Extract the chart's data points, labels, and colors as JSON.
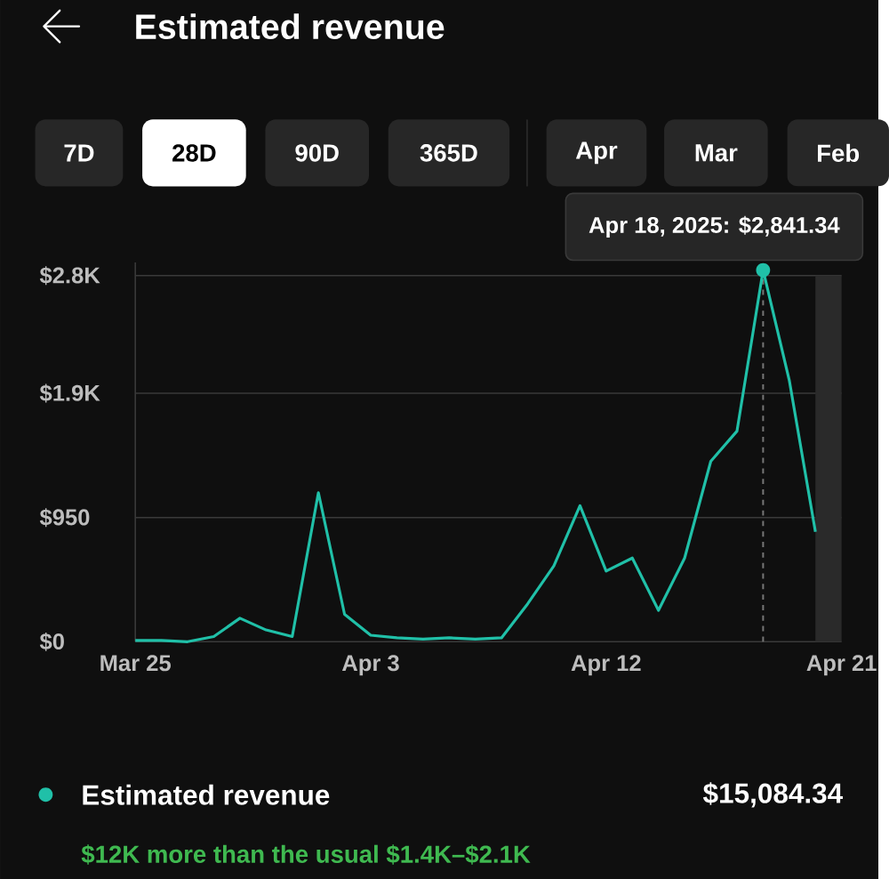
{
  "chart_data": {
    "type": "line",
    "title": "Estimated revenue",
    "x": [
      "2025-03-25",
      "2025-03-26",
      "2025-03-27",
      "2025-03-28",
      "2025-03-29",
      "2025-03-30",
      "2025-03-31",
      "2025-04-01",
      "2025-04-02",
      "2025-04-03",
      "2025-04-04",
      "2025-04-05",
      "2025-04-06",
      "2025-04-07",
      "2025-04-08",
      "2025-04-09",
      "2025-04-10",
      "2025-04-11",
      "2025-04-12",
      "2025-04-13",
      "2025-04-14",
      "2025-04-15",
      "2025-04-16",
      "2025-04-17",
      "2025-04-18",
      "2025-04-19",
      "2025-04-20"
    ],
    "series": [
      {
        "name": "Estimated revenue",
        "color": "#20c0a8",
        "values": [
          10,
          10,
          0,
          40,
          180,
          90,
          40,
          1140,
          210,
          50,
          30,
          20,
          30,
          20,
          30,
          290,
          580,
          1040,
          540,
          640,
          240,
          640,
          1380,
          1610,
          2841.34,
          2000,
          840
        ]
      }
    ],
    "xlim": [
      "2025-03-25",
      "2025-04-21"
    ],
    "xticks": [
      {
        "value": "2025-03-25",
        "label": "Mar 25"
      },
      {
        "value": "2025-04-03",
        "label": "Apr 3"
      },
      {
        "value": "2025-04-12",
        "label": "Apr 12"
      },
      {
        "value": "2025-04-21",
        "label": "Apr 21"
      }
    ],
    "ylim": [
      0,
      2900
    ],
    "yticks": [
      {
        "value": 0,
        "label": "$0"
      },
      {
        "value": 950,
        "label": "$950"
      },
      {
        "value": 1900,
        "label": "$1.9K"
      },
      {
        "value": 2800,
        "label": "$2.8K"
      }
    ],
    "grid": "y",
    "legend": "bottom",
    "ref_lines": [
      {
        "axis": "x",
        "value": "2025-04-18",
        "line_style": "dashed",
        "color": "#777777"
      }
    ],
    "bands": [
      {
        "axis": "x",
        "from": "2025-04-20",
        "to": "2025-04-21",
        "color": "#2a2a2a"
      }
    ],
    "annotations": [
      "7D",
      "28D",
      "90D",
      "365D",
      "Apr",
      "Mar",
      "Feb",
      "$15,084.34",
      "$12K more than the usual $1.4K–$2.1K",
      {
        "text": "Apr 18, 2025: $2,841.34",
        "x": "2025-04-18",
        "y": 2841.34
      }
    ]
  }
}
